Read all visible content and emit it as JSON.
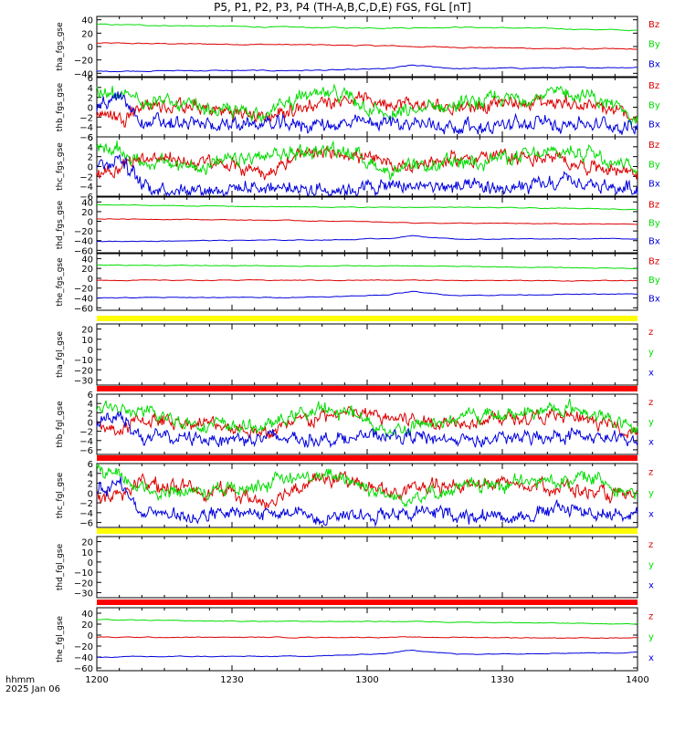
{
  "title": "P5, P1, P2, P3, P4 (TH-A,B,C,D,E) FGS, FGL [nT]",
  "xaxis": {
    "label_line1": "hhmm",
    "label_line2": "2025 Jan 06",
    "range": [
      "12:00",
      "14:00"
    ],
    "ticks": [
      "1200",
      "1230",
      "1300",
      "1330",
      "1400"
    ]
  },
  "colors": {
    "x": "#0000dd",
    "y": "#00dd00",
    "z": "#dd0000",
    "flag_yellow": "#ffff00",
    "flag_red": "#ff0000"
  },
  "chart_data": [
    {
      "type": "line",
      "ylabel": "tha_fgs_gse",
      "ylim": [
        -45,
        45
      ],
      "yticks": [
        40,
        20,
        0,
        -20,
        -40
      ],
      "legend": [
        "Bz",
        "By",
        "Bx"
      ],
      "x": [
        "12:00",
        "12:20",
        "12:40",
        "12:55",
        "13:05",
        "13:10",
        "13:20",
        "13:40",
        "14:00"
      ],
      "series": [
        {
          "name": "Bz",
          "color": "z",
          "values": [
            5,
            4,
            3,
            2,
            1,
            0,
            -1,
            -3,
            -4
          ]
        },
        {
          "name": "By",
          "color": "y",
          "values": [
            33,
            31,
            29,
            28,
            28,
            28,
            29,
            27,
            24
          ]
        },
        {
          "name": "Bx",
          "color": "x",
          "values": [
            -37,
            -36,
            -36,
            -35,
            -33,
            -28,
            -33,
            -32,
            -31
          ]
        }
      ]
    },
    {
      "type": "line",
      "ylabel": "thb_fgs_gse",
      "ylim": [
        -6,
        6
      ],
      "yticks": [
        6,
        4,
        2,
        0,
        -2,
        -4,
        -6
      ],
      "legend": [
        "Bz",
        "By",
        "Bx"
      ],
      "x": [
        "12:00",
        "12:05",
        "12:10",
        "12:20",
        "12:30",
        "12:38",
        "12:45",
        "12:55",
        "13:05",
        "13:15",
        "13:25",
        "13:35",
        "13:45",
        "13:50",
        "14:00"
      ],
      "series": [
        {
          "name": "Bz",
          "color": "z",
          "values": [
            -1,
            -2,
            0.5,
            0,
            -1,
            -2,
            0,
            2,
            1,
            0,
            0.5,
            1,
            1,
            0,
            -2
          ]
        },
        {
          "name": "By",
          "color": "y",
          "values": [
            3,
            2,
            2,
            0,
            -1,
            -1,
            2,
            2.5,
            -2,
            0,
            1,
            2,
            3,
            2,
            -2
          ]
        },
        {
          "name": "Bx",
          "color": "x",
          "values": [
            0,
            2,
            -3,
            -3.5,
            -3.5,
            -3.5,
            -3.5,
            -3.5,
            -3,
            -3.5,
            -4,
            -3.5,
            -3,
            -3.5,
            -4
          ]
        }
      ]
    },
    {
      "type": "line",
      "ylabel": "thc_fgs_gse",
      "ylim": [
        -6,
        6
      ],
      "yticks": [
        6,
        4,
        2,
        0,
        -2,
        -4,
        -6
      ],
      "legend": [
        "Bz",
        "By",
        "Bx"
      ],
      "x": [
        "12:00",
        "12:05",
        "12:10",
        "12:20",
        "12:30",
        "12:38",
        "12:45",
        "12:55",
        "13:05",
        "13:15",
        "13:25",
        "13:35",
        "13:45",
        "13:50",
        "14:00"
      ],
      "series": [
        {
          "name": "Bz",
          "color": "z",
          "values": [
            -1,
            0,
            2,
            1,
            0,
            -1,
            2,
            3,
            0,
            1,
            2,
            2,
            1,
            0,
            -1
          ]
        },
        {
          "name": "By",
          "color": "y",
          "values": [
            4,
            3,
            1,
            0,
            1,
            2,
            3,
            3.5,
            -1,
            0,
            1.5,
            2,
            3,
            3,
            0
          ]
        },
        {
          "name": "Bx",
          "color": "x",
          "values": [
            0,
            2,
            -4,
            -4.5,
            -4.5,
            -4,
            -4.5,
            -4.5,
            -4,
            -4,
            -4.5,
            -4.5,
            -3,
            -4,
            -4.5
          ]
        }
      ]
    },
    {
      "type": "line",
      "ylabel": "thd_fgs_gse",
      "ylim": [
        -65,
        50
      ],
      "yticks": [
        40,
        20,
        0,
        -20,
        -40,
        -60
      ],
      "legend": [
        "Bz",
        "By",
        "Bx"
      ],
      "x": [
        "12:00",
        "12:20",
        "12:40",
        "12:55",
        "13:05",
        "13:10",
        "13:20",
        "13:40",
        "14:00"
      ],
      "series": [
        {
          "name": "Bz",
          "color": "z",
          "values": [
            5,
            4,
            2,
            0,
            -2,
            -3,
            -4,
            -5,
            -6
          ]
        },
        {
          "name": "By",
          "color": "y",
          "values": [
            34,
            32,
            30,
            29,
            29,
            29,
            29,
            27,
            25
          ]
        },
        {
          "name": "Bx",
          "color": "x",
          "values": [
            -42,
            -40,
            -39,
            -38,
            -35,
            -30,
            -37,
            -36,
            -36
          ]
        }
      ]
    },
    {
      "type": "line",
      "ylabel": "the_fgs_gse",
      "ylim": [
        -65,
        50
      ],
      "yticks": [
        40,
        20,
        0,
        -20,
        -40,
        -60
      ],
      "legend": [
        "Bz",
        "By",
        "Bx"
      ],
      "x": [
        "12:00",
        "12:20",
        "12:40",
        "12:55",
        "13:05",
        "13:10",
        "13:20",
        "13:40",
        "14:00"
      ],
      "series": [
        {
          "name": "Bz",
          "color": "z",
          "values": [
            -4,
            -4,
            -4,
            -4,
            -4,
            -4,
            -4,
            -5,
            -5
          ]
        },
        {
          "name": "By",
          "color": "y",
          "values": [
            27,
            26,
            25,
            25,
            25,
            25,
            24,
            22,
            20
          ]
        },
        {
          "name": "Bx",
          "color": "x",
          "values": [
            -40,
            -39,
            -39,
            -37,
            -33,
            -27,
            -35,
            -33,
            -32
          ]
        }
      ]
    },
    {
      "type": "line",
      "ylabel": "tha_fgl_gse",
      "ylim": [
        -35,
        25
      ],
      "yticks": [
        20,
        10,
        0,
        -10,
        -20,
        -30
      ],
      "flag": "flag_yellow",
      "legend": [
        "z",
        "y",
        "x"
      ],
      "series": []
    },
    {
      "type": "line",
      "ylabel": "thb_fgl_gse",
      "ylim": [
        -7,
        6
      ],
      "yticks": [
        6,
        4,
        2,
        0,
        -2,
        -4,
        -6
      ],
      "flag": "flag_red",
      "legend": [
        "z",
        "y",
        "x"
      ],
      "x": [
        "12:00",
        "12:05",
        "12:10",
        "12:20",
        "12:30",
        "12:38",
        "12:45",
        "12:55",
        "13:05",
        "13:15",
        "13:25",
        "13:35",
        "13:45",
        "13:50",
        "14:00"
      ],
      "series": [
        {
          "name": "z",
          "color": "z",
          "values": [
            -1,
            -2,
            0.5,
            0,
            -1,
            -2.5,
            0,
            2,
            1,
            0,
            0.5,
            1,
            1,
            0,
            -2
          ]
        },
        {
          "name": "y",
          "color": "y",
          "values": [
            3.5,
            2.5,
            2,
            0,
            -1,
            -1,
            2,
            2.5,
            -2,
            0,
            1.5,
            2,
            3,
            2,
            -2
          ]
        },
        {
          "name": "x",
          "color": "x",
          "values": [
            0,
            2,
            -3.5,
            -3.5,
            -3.5,
            -3.5,
            -3.5,
            -3.5,
            -3,
            -3.5,
            -4,
            -3.5,
            -2.5,
            -3.5,
            -4
          ]
        }
      ]
    },
    {
      "type": "line",
      "ylabel": "thc_fgl_gse",
      "ylim": [
        -7,
        6
      ],
      "yticks": [
        6,
        4,
        2,
        0,
        -2,
        -4,
        -6
      ],
      "flag": "flag_red",
      "legend": [
        "z",
        "y",
        "x"
      ],
      "x": [
        "12:00",
        "12:05",
        "12:10",
        "12:20",
        "12:30",
        "12:38",
        "12:45",
        "12:55",
        "13:05",
        "13:15",
        "13:25",
        "13:35",
        "13:45",
        "13:50",
        "14:00"
      ],
      "series": [
        {
          "name": "z",
          "color": "z",
          "values": [
            -1,
            0,
            2,
            1,
            0,
            -2,
            2,
            3,
            0,
            1,
            2,
            2,
            1,
            0,
            -1
          ]
        },
        {
          "name": "y",
          "color": "y",
          "values": [
            4.5,
            3,
            1,
            0,
            1,
            2,
            3,
            3.5,
            -1,
            0,
            1.5,
            2,
            3,
            3,
            0
          ]
        },
        {
          "name": "x",
          "color": "x",
          "values": [
            0,
            2,
            -4,
            -4.5,
            -4.5,
            -4,
            -4.5,
            -4.5,
            -4,
            -4,
            -4.5,
            -4.5,
            -3,
            -4,
            -4.5
          ]
        }
      ]
    },
    {
      "type": "line",
      "ylabel": "thd_fgl_gse",
      "ylim": [
        -35,
        25
      ],
      "yticks": [
        20,
        10,
        0,
        -10,
        -20,
        -30
      ],
      "flag": "flag_yellow",
      "legend": [
        "z",
        "y",
        "x"
      ],
      "series": []
    },
    {
      "type": "line",
      "ylabel": "the_fgl_gse",
      "ylim": [
        -65,
        50
      ],
      "yticks": [
        40,
        20,
        0,
        -20,
        -40,
        -60
      ],
      "flag": "flag_red",
      "legend": [
        "z",
        "y",
        "x"
      ],
      "x": [
        "12:00",
        "12:20",
        "12:40",
        "12:55",
        "13:05",
        "13:10",
        "13:20",
        "13:40",
        "14:00"
      ],
      "series": [
        {
          "name": "z",
          "color": "z",
          "values": [
            -4,
            -4,
            -4,
            -4,
            -4,
            -4,
            -4,
            -5,
            -5
          ]
        },
        {
          "name": "y",
          "color": "y",
          "values": [
            28,
            26,
            25,
            25,
            25,
            25,
            24,
            22,
            20
          ]
        },
        {
          "name": "x",
          "color": "x",
          "values": [
            -40,
            -39,
            -39,
            -37,
            -33,
            -27,
            -35,
            -33,
            -32
          ]
        }
      ]
    }
  ]
}
